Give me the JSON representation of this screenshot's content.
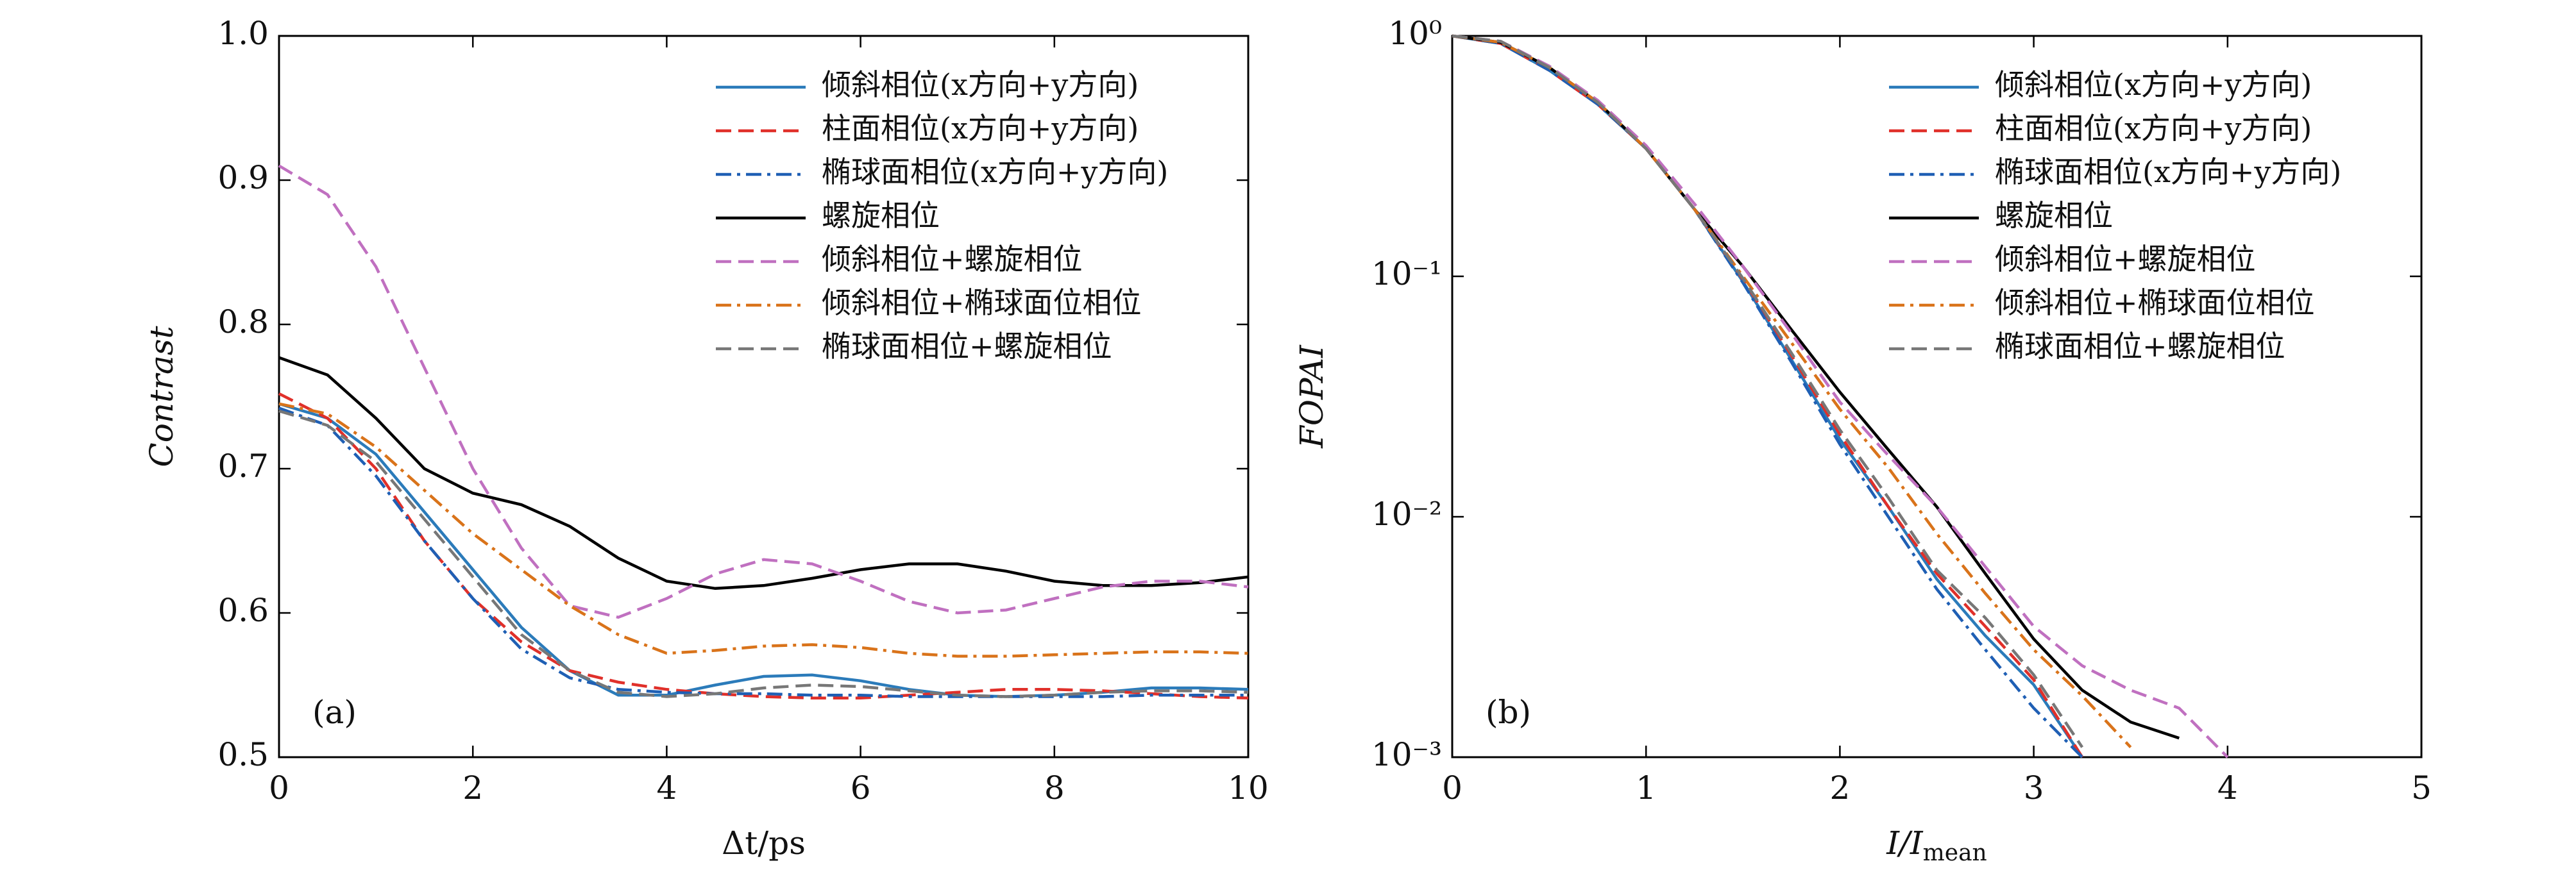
{
  "chart_data": [
    {
      "type": "line",
      "panel_label": "(a)",
      "x_label": "Δt/ps",
      "y_label": "Contrast",
      "x": [
        0,
        0.5,
        1,
        1.5,
        2,
        2.5,
        3,
        3.5,
        4,
        4.5,
        5,
        5.5,
        6,
        6.5,
        7,
        7.5,
        8,
        8.5,
        9,
        9.5,
        10
      ],
      "xlim": [
        0,
        10
      ],
      "xticks": [
        0,
        2,
        4,
        6,
        8,
        10
      ],
      "ylim": [
        0.5,
        1.0
      ],
      "yticks": [
        0.5,
        0.6,
        0.7,
        0.8,
        0.9,
        {
          "value": 1.0,
          "label": "1.0"
        }
      ],
      "log_y": false,
      "legend": "upper right",
      "series": [
        {
          "name": "倾斜相位(x方向+y方向)",
          "color": "#2b7bba",
          "dash": "solid",
          "values": [
            0.745,
            0.735,
            0.71,
            0.67,
            0.63,
            0.59,
            0.56,
            0.543,
            0.543,
            0.55,
            0.556,
            0.557,
            0.553,
            0.547,
            0.543,
            0.542,
            0.543,
            0.545,
            0.548,
            0.548,
            0.547
          ]
        },
        {
          "name": "柱面相位(x方向+y方向)",
          "color": "#e0302a",
          "dash": "dashed",
          "values": [
            0.752,
            0.735,
            0.7,
            0.65,
            0.61,
            0.58,
            0.56,
            0.552,
            0.547,
            0.544,
            0.542,
            0.541,
            0.541,
            0.543,
            0.545,
            0.547,
            0.547,
            0.546,
            0.544,
            0.542,
            0.541
          ]
        },
        {
          "name": "椭球面相位(x方向+y方向)",
          "color": "#1f5fb4",
          "dash": "dashdot",
          "values": [
            0.742,
            0.73,
            0.695,
            0.65,
            0.61,
            0.575,
            0.555,
            0.547,
            0.545,
            0.544,
            0.544,
            0.543,
            0.543,
            0.542,
            0.542,
            0.542,
            0.542,
            0.542,
            0.543,
            0.543,
            0.543
          ]
        },
        {
          "name": "螺旋相位",
          "color": "#000000",
          "dash": "solid",
          "values": [
            0.777,
            0.765,
            0.735,
            0.7,
            0.683,
            0.675,
            0.66,
            0.638,
            0.622,
            0.617,
            0.619,
            0.624,
            0.63,
            0.634,
            0.634,
            0.629,
            0.622,
            0.619,
            0.619,
            0.621,
            0.625
          ]
        },
        {
          "name": "倾斜相位+螺旋相位",
          "color": "#c070c0",
          "dash": "dashed",
          "values": [
            0.91,
            0.89,
            0.84,
            0.77,
            0.7,
            0.645,
            0.605,
            0.597,
            0.61,
            0.627,
            0.637,
            0.634,
            0.622,
            0.608,
            0.6,
            0.602,
            0.61,
            0.618,
            0.622,
            0.622,
            0.618
          ]
        },
        {
          "name": "倾斜相位+椭球面位相位",
          "color": "#d9731a",
          "dash": "dashdot",
          "values": [
            0.745,
            0.738,
            0.715,
            0.685,
            0.655,
            0.63,
            0.605,
            0.585,
            0.572,
            0.574,
            0.577,
            0.578,
            0.576,
            0.572,
            0.57,
            0.57,
            0.571,
            0.572,
            0.573,
            0.573,
            0.572
          ]
        },
        {
          "name": "椭球面相位+螺旋相位",
          "color": "#777777",
          "dash": "dashed",
          "values": [
            0.74,
            0.73,
            0.705,
            0.665,
            0.625,
            0.585,
            0.56,
            0.545,
            0.542,
            0.544,
            0.548,
            0.55,
            0.549,
            0.546,
            0.543,
            0.542,
            0.543,
            0.545,
            0.546,
            0.546,
            0.545
          ]
        }
      ]
    },
    {
      "type": "line",
      "panel_label": "(b)",
      "x_label": {
        "main": "I/I",
        "sub": "mean"
      },
      "y_label": "FOPAI",
      "x": [
        0,
        0.25,
        0.5,
        0.75,
        1,
        1.25,
        1.5,
        1.75,
        2,
        2.25,
        2.5,
        2.75,
        3,
        3.25,
        3.5,
        3.75,
        4
      ],
      "xlim": [
        0,
        5
      ],
      "xticks": [
        0,
        1,
        2,
        3,
        4,
        5
      ],
      "ylim": [
        0.001,
        1
      ],
      "yticks": [
        {
          "value": 0.001,
          "label": "10⁻³"
        },
        {
          "value": 0.01,
          "label": "10⁻²"
        },
        {
          "value": 0.1,
          "label": "10⁻¹"
        },
        {
          "value": 1,
          "label": "10⁰"
        }
      ],
      "log_y": true,
      "legend": "upper right",
      "series": [
        {
          "name": "倾斜相位(x方向+y方向)",
          "color": "#2b7bba",
          "dash": "solid",
          "values": [
            1,
            0.93,
            0.72,
            0.52,
            0.34,
            0.19,
            0.095,
            0.045,
            0.021,
            0.011,
            0.0055,
            0.0032,
            0.002,
            0.001,
            null,
            null,
            null
          ]
        },
        {
          "name": "柱面相位(x方向+y方向)",
          "color": "#e0302a",
          "dash": "dashed",
          "values": [
            1,
            0.93,
            0.72,
            0.52,
            0.34,
            0.19,
            0.097,
            0.047,
            0.022,
            0.011,
            0.0058,
            0.0035,
            0.0021,
            0.001,
            null,
            null,
            null
          ]
        },
        {
          "name": "椭球面相位(x方向+y方向)",
          "color": "#1f5fb4",
          "dash": "dashdot",
          "values": [
            1,
            0.93,
            0.72,
            0.52,
            0.34,
            0.19,
            0.094,
            0.044,
            0.02,
            0.01,
            0.005,
            0.0028,
            0.0016,
            0.001,
            null,
            null,
            null
          ]
        },
        {
          "name": "螺旋相位",
          "color": "#000000",
          "dash": "solid",
          "values": [
            1,
            0.94,
            0.74,
            0.53,
            0.34,
            0.19,
            0.11,
            0.06,
            0.033,
            0.019,
            0.011,
            0.0058,
            0.0031,
            0.0019,
            0.0014,
            0.0012,
            null
          ]
        },
        {
          "name": "倾斜相位+螺旋相位",
          "color": "#c070c0",
          "dash": "dashed",
          "values": [
            1,
            0.95,
            0.75,
            0.54,
            0.35,
            0.2,
            0.11,
            0.058,
            0.03,
            0.018,
            0.011,
            0.0062,
            0.0035,
            0.0024,
            0.0019,
            0.0016,
            0.001
          ]
        },
        {
          "name": "倾斜相位+椭球面位相位",
          "color": "#d9731a",
          "dash": "dashdot",
          "values": [
            1,
            0.94,
            0.74,
            0.53,
            0.34,
            0.19,
            0.1,
            0.053,
            0.028,
            0.016,
            0.0085,
            0.0048,
            0.0028,
            0.0018,
            0.0011,
            null,
            null
          ]
        },
        {
          "name": "椭球面相位+螺旋相位",
          "color": "#777777",
          "dash": "dashed",
          "values": [
            1,
            0.95,
            0.74,
            0.53,
            0.34,
            0.19,
            0.098,
            0.048,
            0.023,
            0.012,
            0.006,
            0.0038,
            0.0022,
            0.0011,
            null,
            null,
            null
          ]
        }
      ]
    }
  ]
}
